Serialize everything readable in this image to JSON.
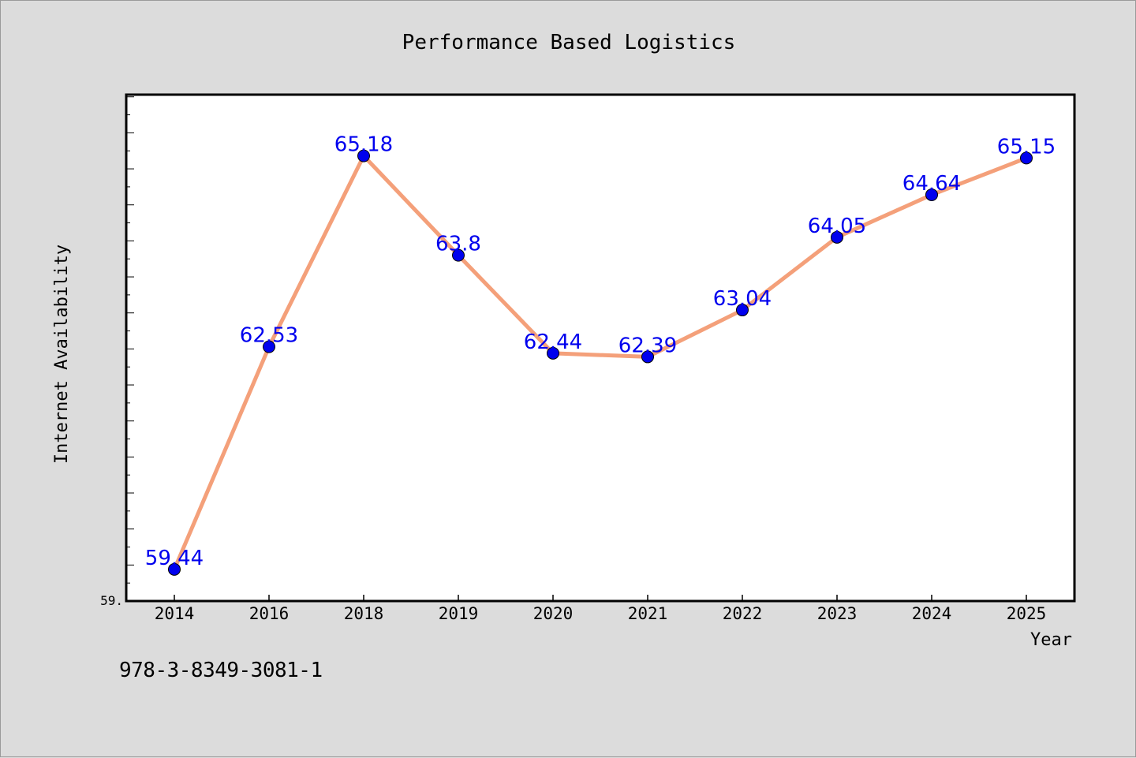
{
  "chart_data": {
    "type": "line",
    "title": "Performance Based Logistics",
    "xlabel": "Year",
    "ylabel": "Internet Availability",
    "categories": [
      "2014",
      "2016",
      "2018",
      "2019",
      "2020",
      "2021",
      "2022",
      "2023",
      "2024",
      "2025"
    ],
    "series": [
      {
        "values": [
          59.44,
          62.53,
          65.18,
          63.8,
          62.44,
          62.39,
          63.04,
          64.05,
          64.64,
          65.15
        ],
        "labels": [
          "59.44",
          "62.53",
          "65.18",
          "63.8",
          "62.44",
          "62.39",
          "63.04",
          "64.05",
          "64.64",
          "65.15"
        ],
        "line_color": "#f4a07a",
        "marker_color": "#0000ee"
      }
    ],
    "y_tick_label": "59.",
    "ylim": [
      59.0,
      66.03
    ],
    "grid": false,
    "legend": "none"
  },
  "footer": {
    "isbn": "978-3-8349-3081-1"
  },
  "colors": {
    "background": "#dcdcdc",
    "plot_background": "#ffffff",
    "label_color": "#0000ee"
  }
}
